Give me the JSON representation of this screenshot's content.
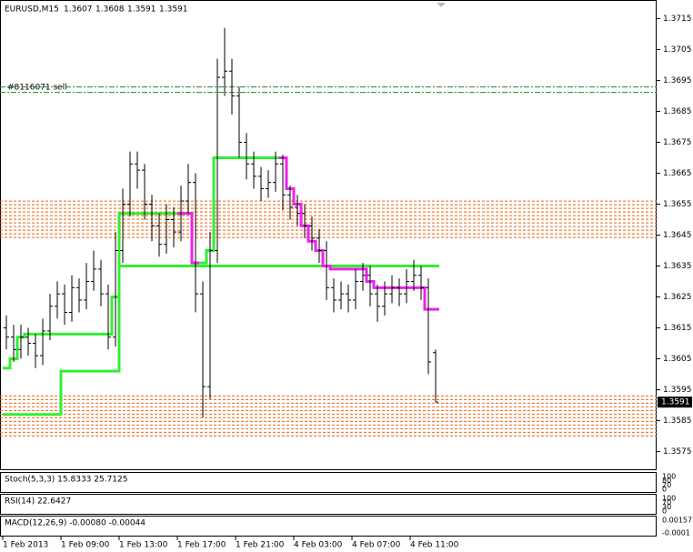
{
  "chart_data": {
    "type": "ohlc",
    "title": "EURUSD,M15",
    "annotation": "#8116071 sell",
    "ylim": [
      1.3569,
      1.3721
    ],
    "yticks": [
      1.3715,
      1.3705,
      1.3695,
      1.3685,
      1.3675,
      1.3665,
      1.3655,
      1.3645,
      1.3635,
      1.3625,
      1.3615,
      1.3605,
      1.3595,
      1.3585,
      1.3575
    ],
    "time_labels": [
      "1 Feb 2013",
      "1 Feb 09:00",
      "1 Feb 13:00",
      "1 Feb 17:00",
      "1 Feb 21:00",
      "4 Feb 03:00",
      "4 Feb 07:00",
      "4 Feb 11:00"
    ],
    "bar_color": "#000000",
    "bars": [
      [
        1.3615,
        1.3619,
        1.3608,
        1.3612
      ],
      [
        1.3612,
        1.3616,
        1.3604,
        1.3608
      ],
      [
        1.3608,
        1.3616,
        1.3605,
        1.3612
      ],
      [
        1.3612,
        1.3615,
        1.3606,
        1.361
      ],
      [
        1.361,
        1.3613,
        1.3602,
        1.3606
      ],
      [
        1.3606,
        1.3618,
        1.3603,
        1.3614
      ],
      [
        1.3614,
        1.3626,
        1.3611,
        1.3622
      ],
      [
        1.3622,
        1.363,
        1.3618,
        1.3626
      ],
      [
        1.3626,
        1.3629,
        1.3616,
        1.362
      ],
      [
        1.362,
        1.3632,
        1.3617,
        1.3628
      ],
      [
        1.3628,
        1.3631,
        1.362,
        1.3624
      ],
      [
        1.3624,
        1.3636,
        1.3621,
        1.363
      ],
      [
        1.363,
        1.364,
        1.3627,
        1.3634
      ],
      [
        1.3634,
        1.3637,
        1.3622,
        1.3626
      ],
      [
        1.3626,
        1.3629,
        1.3608,
        1.3612
      ],
      [
        1.3612,
        1.3646,
        1.3609,
        1.364
      ],
      [
        1.364,
        1.366,
        1.3636,
        1.3655
      ],
      [
        1.3655,
        1.3672,
        1.3651,
        1.3668
      ],
      [
        1.3668,
        1.3672,
        1.366,
        1.3666
      ],
      [
        1.3666,
        1.3668,
        1.365,
        1.3655
      ],
      [
        1.3655,
        1.3658,
        1.3643,
        1.3648
      ],
      [
        1.3648,
        1.3652,
        1.3638,
        1.3642
      ],
      [
        1.3642,
        1.3655,
        1.3639,
        1.365
      ],
      [
        1.365,
        1.3654,
        1.3641,
        1.3646
      ],
      [
        1.3646,
        1.3661,
        1.3643,
        1.3656
      ],
      [
        1.3656,
        1.3668,
        1.3652,
        1.3662
      ],
      [
        1.3662,
        1.3665,
        1.362,
        1.3626
      ],
      [
        1.3626,
        1.363,
        1.3586,
        1.3596
      ],
      [
        1.3596,
        1.3646,
        1.3592,
        1.364
      ],
      [
        1.364,
        1.3702,
        1.3636,
        1.3696
      ],
      [
        1.3696,
        1.3712,
        1.369,
        1.3698
      ],
      [
        1.3698,
        1.3702,
        1.3684,
        1.369
      ],
      [
        1.369,
        1.3693,
        1.367,
        1.3675
      ],
      [
        1.3675,
        1.3678,
        1.3663,
        1.3668
      ],
      [
        1.3668,
        1.3672,
        1.366,
        1.3664
      ],
      [
        1.3664,
        1.3667,
        1.3656,
        1.366
      ],
      [
        1.366,
        1.3666,
        1.3657,
        1.3662
      ],
      [
        1.3662,
        1.3672,
        1.3659,
        1.3668
      ],
      [
        1.3668,
        1.3671,
        1.3653,
        1.3658
      ],
      [
        1.3658,
        1.3661,
        1.365,
        1.3654
      ],
      [
        1.3654,
        1.3658,
        1.3648,
        1.3652
      ],
      [
        1.3652,
        1.3655,
        1.3644,
        1.3648
      ],
      [
        1.3648,
        1.3651,
        1.364,
        1.3644
      ],
      [
        1.3644,
        1.3647,
        1.3636,
        1.364
      ],
      [
        1.364,
        1.3643,
        1.3624,
        1.3628
      ],
      [
        1.3628,
        1.3631,
        1.362,
        1.3624
      ],
      [
        1.3624,
        1.363,
        1.3621,
        1.3626
      ],
      [
        1.3626,
        1.3629,
        1.362,
        1.3624
      ],
      [
        1.3624,
        1.3634,
        1.3621,
        1.363
      ],
      [
        1.363,
        1.3636,
        1.3627,
        1.3632
      ],
      [
        1.3632,
        1.3635,
        1.3622,
        1.3626
      ],
      [
        1.3626,
        1.3629,
        1.3617,
        1.3622
      ],
      [
        1.3622,
        1.363,
        1.3619,
        1.3626
      ],
      [
        1.3626,
        1.3632,
        1.3623,
        1.3628
      ],
      [
        1.3628,
        1.3631,
        1.3622,
        1.3626
      ],
      [
        1.3626,
        1.3634,
        1.3623,
        1.363
      ],
      [
        1.363,
        1.3637,
        1.3627,
        1.3632
      ],
      [
        1.3632,
        1.3635,
        1.3624,
        1.3628
      ],
      [
        1.3628,
        1.3631,
        1.36,
        1.3604
      ],
      [
        1.3607,
        1.3608,
        1.3591,
        1.3591
      ]
    ],
    "series": [
      {
        "color": "#33ee33",
        "values": [
          1.3602,
          1.3605,
          1.3612,
          1.3613,
          1.3613,
          1.3613,
          1.3613,
          1.3613,
          1.3613,
          1.3613,
          1.3613,
          1.3613,
          1.3613,
          1.3613,
          1.3613,
          1.3625,
          1.3652,
          1.3652,
          1.3652,
          1.3652,
          1.3652,
          1.3652,
          1.3652,
          1.3652,
          1.3652,
          1.3652,
          1.3636,
          1.3636,
          1.364,
          1.367,
          1.367,
          1.367,
          1.367,
          1.367,
          1.367,
          1.367,
          1.367,
          1.367,
          1.367,
          null,
          null,
          null,
          null,
          null,
          null,
          null,
          null,
          null,
          null,
          null,
          null,
          null,
          null,
          null,
          null,
          null,
          null,
          null,
          null,
          null
        ]
      },
      {
        "color": "#33ee33",
        "values": [
          1.3587,
          1.3587,
          1.3587,
          1.3587,
          1.3587,
          1.3587,
          1.3587,
          1.3587,
          1.3601,
          1.3601,
          1.3601,
          1.3601,
          1.3601,
          1.3601,
          1.3601,
          1.3601,
          1.3635,
          1.3635,
          1.3635,
          1.3635,
          1.3635,
          1.3635,
          1.3635,
          1.3635,
          1.3635,
          1.3635,
          1.3635,
          1.3635,
          1.3635,
          1.3635,
          1.3635,
          1.3635,
          1.3635,
          1.3635,
          1.3635,
          1.3635,
          1.3635,
          1.3635,
          1.3635,
          1.3635,
          1.3635,
          1.3635,
          1.3635,
          1.3635,
          1.3635,
          1.3635,
          1.3635,
          1.3635,
          1.3635,
          1.3635,
          1.3635,
          1.3635,
          1.3635,
          1.3635,
          1.3635,
          1.3635,
          1.3635,
          1.3635,
          1.3635,
          1.3635
        ]
      },
      {
        "color": "#ee22ee",
        "values": [
          null,
          null,
          null,
          null,
          null,
          null,
          null,
          null,
          null,
          null,
          null,
          null,
          null,
          null,
          null,
          null,
          null,
          null,
          null,
          null,
          null,
          null,
          null,
          null,
          1.3652,
          1.3652,
          1.3636,
          null,
          null,
          null,
          null,
          null,
          null,
          null,
          null,
          null,
          null,
          null,
          1.367,
          1.366,
          1.3655,
          1.3648,
          1.3643,
          1.364,
          1.3635,
          1.3634,
          1.3634,
          1.3634,
          1.3634,
          1.3634,
          1.363,
          1.3628,
          1.3628,
          1.3628,
          1.3628,
          1.3628,
          1.3628,
          1.3628,
          1.3621,
          1.3621
        ]
      }
    ],
    "resistance_zone": [
      1.3644,
      1.3656
    ],
    "support_zone": [
      1.3579,
      1.3593
    ],
    "order_level": 1.3692,
    "zone_color": "#ee6611",
    "order_color": "#228822",
    "panels": [
      {
        "title": "Stoch(5,3,3) 15.8333 25.7125",
        "ticks": [
          "100",
          "80",
          "20",
          "0"
        ]
      },
      {
        "title": "RSI(14) 22.6427",
        "ticks": [
          "100",
          "70",
          "30",
          "0"
        ]
      },
      {
        "title": "MACD(12,26,9) -0.00080 -0.00044",
        "ticks": [
          "0.00157",
          "-0.0001"
        ]
      }
    ]
  }
}
